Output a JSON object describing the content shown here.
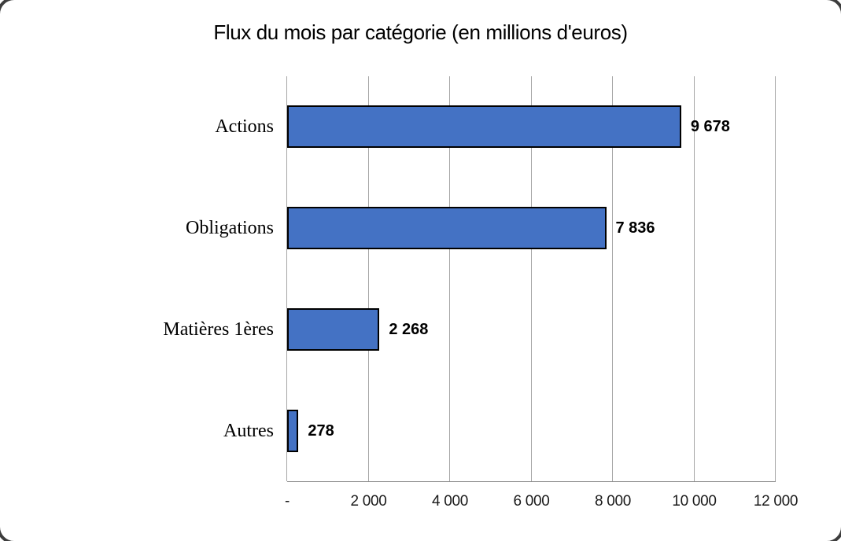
{
  "chart_data": {
    "type": "bar",
    "orientation": "horizontal",
    "title": "Flux du mois par catégorie (en millions d'euros)",
    "categories": [
      "Actions",
      "Obligations",
      "Matières 1ères",
      "Autres"
    ],
    "values": [
      9678,
      7836,
      2268,
      278
    ],
    "value_labels": [
      "9 678",
      "7 836",
      "2 268",
      "278"
    ],
    "xlim": [
      0,
      12000
    ],
    "x_ticks": [
      0,
      2000,
      4000,
      6000,
      8000,
      10000,
      12000
    ],
    "x_tick_labels": [
      "-",
      "2 000",
      "4 000",
      "6 000",
      "8 000",
      "10 000",
      "12 000"
    ],
    "grid": "vertical-only",
    "legend": "none",
    "bar_color": "#4472C4",
    "bar_border_color": "#000000",
    "gridline_color": "#A6A6A6",
    "axis_line_color": "#8C8C8C"
  }
}
